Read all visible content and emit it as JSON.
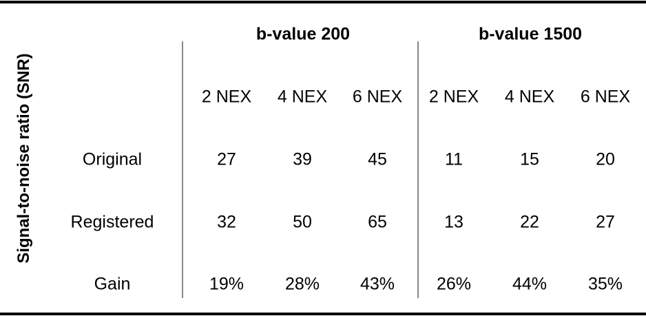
{
  "table": {
    "side_label": "Signal-to-noise ratio (SNR)",
    "groups": [
      "b-value 200",
      "b-value 1500"
    ],
    "columns": [
      "2 NEX",
      "4 NEX",
      "6 NEX",
      "2 NEX",
      "4 NEX",
      "6 NEX"
    ],
    "rows": [
      {
        "label": "Original",
        "cells": [
          "27",
          "39",
          "45",
          "11",
          "15",
          "20"
        ]
      },
      {
        "label": "Registered",
        "cells": [
          "32",
          "50",
          "65",
          "13",
          "22",
          "27"
        ]
      },
      {
        "label": "Gain",
        "cells": [
          "19%",
          "28%",
          "43%",
          "26%",
          "44%",
          "35%"
        ]
      }
    ]
  }
}
